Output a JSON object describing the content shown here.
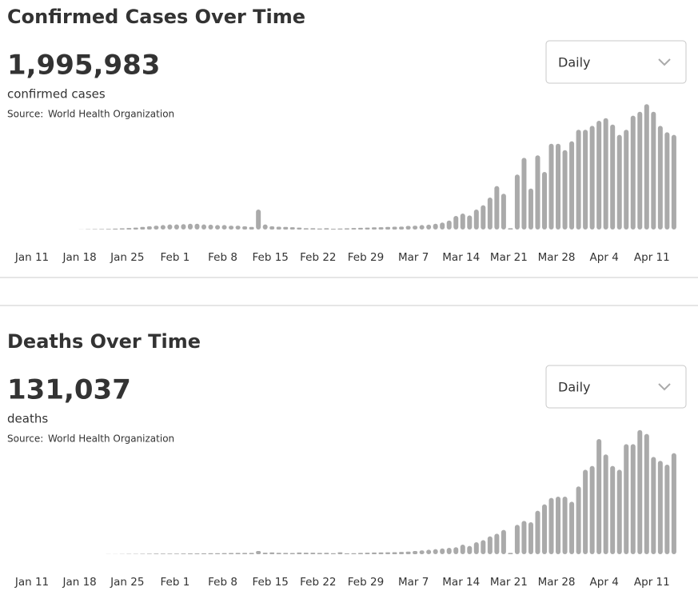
{
  "chart_data": [
    {
      "type": "bar",
      "title": "Confirmed Cases Over Time",
      "total": "1,995,983",
      "total_label": "confirmed cases",
      "source_label": "Source:",
      "source": "World Health Organization",
      "dropdown": "Daily",
      "color": "#aaaaaa",
      "ylim": [
        0,
        100000
      ],
      "categories": [
        "Jan 11",
        null,
        null,
        null,
        null,
        null,
        null,
        "Jan 18",
        null,
        null,
        null,
        null,
        null,
        null,
        "Jan 25",
        null,
        null,
        null,
        null,
        null,
        null,
        "Feb 1",
        null,
        null,
        null,
        null,
        null,
        null,
        "Feb 8",
        null,
        null,
        null,
        null,
        null,
        null,
        "Feb 15",
        null,
        null,
        null,
        null,
        null,
        null,
        "Feb 22",
        null,
        null,
        null,
        null,
        null,
        null,
        "Feb 29",
        null,
        null,
        null,
        null,
        null,
        null,
        "Mar 7",
        null,
        null,
        null,
        null,
        null,
        null,
        "Mar 14",
        null,
        null,
        null,
        null,
        null,
        null,
        "Mar 21",
        null,
        null,
        null,
        null,
        null,
        null,
        "Mar 28",
        null,
        null,
        null,
        null,
        null,
        null,
        "Apr 4",
        null,
        null,
        null,
        null,
        null,
        null,
        "Apr 11",
        null,
        null,
        null
      ],
      "values": [
        0,
        0,
        0,
        0,
        0,
        0,
        0,
        100,
        200,
        300,
        400,
        500,
        700,
        900,
        1200,
        1500,
        2000,
        2500,
        3000,
        3500,
        4000,
        4000,
        4200,
        4500,
        4500,
        4000,
        3800,
        3500,
        3500,
        3000,
        3000,
        2500,
        2000,
        15600,
        4000,
        2500,
        2200,
        2000,
        1800,
        1500,
        1000,
        1000,
        800,
        1000,
        600,
        800,
        900,
        1200,
        1300,
        1500,
        1700,
        1800,
        2000,
        2200,
        2300,
        2800,
        3000,
        3500,
        3800,
        4500,
        5500,
        7000,
        10600,
        12500,
        11000,
        15600,
        19000,
        25000,
        34000,
        28000,
        1000,
        43000,
        56000,
        32000,
        58000,
        45000,
        67000,
        67000,
        62000,
        69000,
        78000,
        78000,
        81000,
        85000,
        87000,
        82000,
        74000,
        78000,
        89000,
        92000,
        98000,
        92000,
        81000,
        76000,
        74000
      ]
    },
    {
      "type": "bar",
      "title": "Deaths Over Time",
      "total": "131,037",
      "total_label": "deaths",
      "source_label": "Source:",
      "source": "World Health Organization",
      "dropdown": "Daily",
      "color": "#aaaaaa",
      "ylim": [
        0,
        10000
      ],
      "categories": [
        "Jan 11",
        null,
        null,
        null,
        null,
        null,
        null,
        "Jan 18",
        null,
        null,
        null,
        null,
        null,
        null,
        "Jan 25",
        null,
        null,
        null,
        null,
        null,
        null,
        "Feb 1",
        null,
        null,
        null,
        null,
        null,
        null,
        "Feb 8",
        null,
        null,
        null,
        null,
        null,
        null,
        "Feb 15",
        null,
        null,
        null,
        null,
        null,
        null,
        "Feb 22",
        null,
        null,
        null,
        null,
        null,
        null,
        "Feb 29",
        null,
        null,
        null,
        null,
        null,
        null,
        "Mar 7",
        null,
        null,
        null,
        null,
        null,
        null,
        "Mar 14",
        null,
        null,
        null,
        null,
        null,
        null,
        "Mar 21",
        null,
        null,
        null,
        null,
        null,
        null,
        "Mar 28",
        null,
        null,
        null,
        null,
        null,
        null,
        "Apr 4",
        null,
        null,
        null,
        null,
        null,
        null,
        "Apr 11",
        null,
        null,
        null
      ],
      "values": [
        0,
        0,
        0,
        0,
        0,
        0,
        0,
        0,
        1,
        2,
        3,
        5,
        10,
        15,
        20,
        25,
        30,
        40,
        45,
        45,
        50,
        50,
        55,
        60,
        65,
        70,
        75,
        80,
        85,
        90,
        100,
        100,
        100,
        250,
        120,
        140,
        110,
        100,
        95,
        130,
        115,
        120,
        100,
        110,
        80,
        150,
        70,
        80,
        100,
        120,
        130,
        140,
        150,
        160,
        180,
        200,
        250,
        300,
        350,
        400,
        450,
        500,
        550,
        750,
        650,
        940,
        1100,
        1400,
        1600,
        1900,
        100,
        2300,
        2600,
        2500,
        3400,
        3900,
        4400,
        4500,
        4500,
        4100,
        5300,
        6600,
        6900,
        9000,
        7800,
        6900,
        6600,
        8600,
        8600,
        9700,
        9400,
        7600,
        7300,
        7000,
        7900
      ]
    }
  ]
}
